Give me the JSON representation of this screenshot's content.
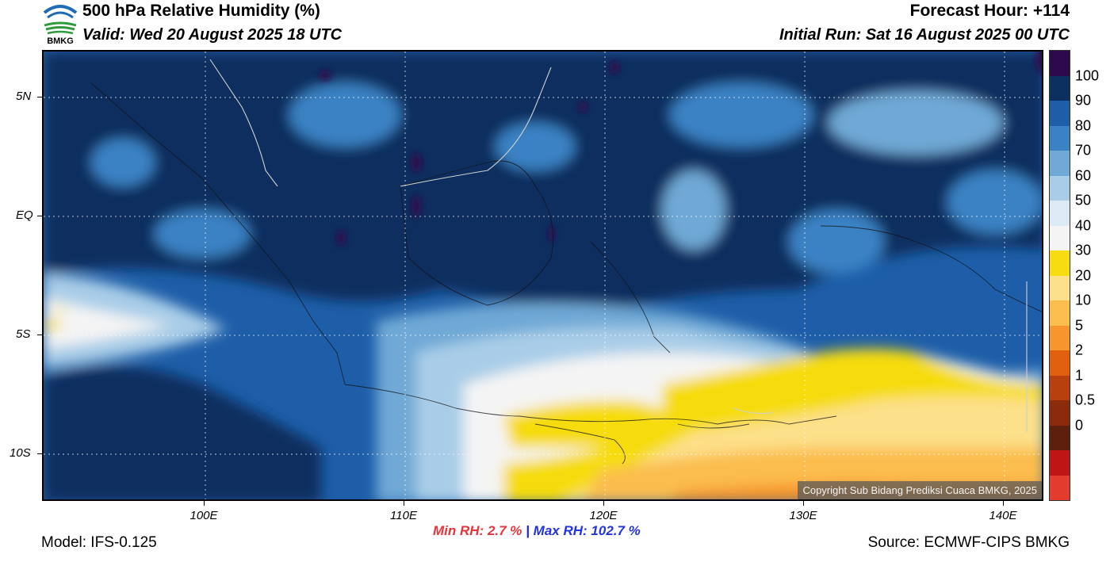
{
  "header": {
    "title": "500 hPa Relative Humidity (%)",
    "valid": "Valid: Wed 20 August 2025 18 UTC",
    "forecast_hour": "Forecast Hour: +114",
    "initial_run": "Initial Run: Sat 16 August 2025 00 UTC",
    "logo_text": "BMKG"
  },
  "map": {
    "lat_labels": [
      "5N",
      "EQ",
      "5S",
      "10S"
    ],
    "lon_labels": [
      "100E",
      "110E",
      "120E",
      "130E",
      "140E"
    ],
    "copyright": "Copyright Sub Bidang Prediksi Cuaca BMKG, 2025"
  },
  "colorbar": {
    "labels": [
      "100",
      "90",
      "80",
      "70",
      "60",
      "50",
      "40",
      "30",
      "20",
      "10",
      "5",
      "2",
      "1",
      "0.5",
      "0"
    ],
    "colors": [
      "#2d0a4e",
      "#0b2f5f",
      "#1e5ea8",
      "#3a82c4",
      "#6fa9d6",
      "#a9cde8",
      "#dceaf4",
      "#f4f4f4",
      "#f6dc10",
      "#fde08a",
      "#fbbd4e",
      "#f6962d",
      "#e06010",
      "#b8400e",
      "#8c2b0b",
      "#5e200d",
      "#bf1515",
      "#e43b2f"
    ]
  },
  "stats": {
    "min_label": "Min RH:",
    "min_value": "2.7 %",
    "separator": "|",
    "max_label": "Max RH:",
    "max_value": "102.7 %"
  },
  "footer": {
    "model": "Model: IFS-0.125",
    "source": "Source: ECMWF-CIPS BMKG"
  }
}
